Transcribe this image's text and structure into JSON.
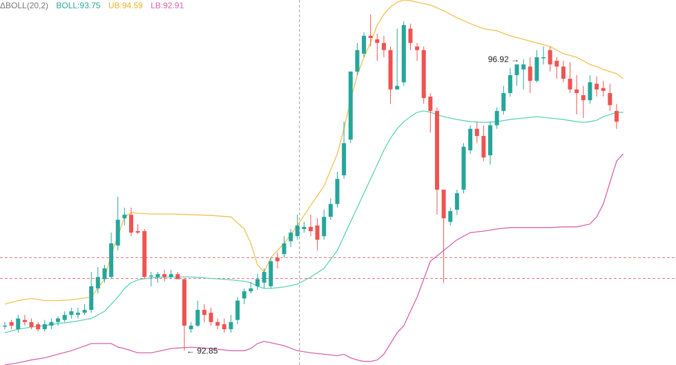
{
  "legend": {
    "indicator": "ΔBOLL(20,2)",
    "boll": "BOLL:93.75",
    "ub": "UB:94.59",
    "lb": "LB:92.91"
  },
  "colors": {
    "up": "#26a69a",
    "down": "#ef5350",
    "mid": "#5ed3b8",
    "upper": "#f2c14e",
    "lower": "#d663b0",
    "crosshair": "#9e9e9e",
    "price_line": "#e57373"
  },
  "chart_data": {
    "type": "candlestick",
    "ylim": [
      92.65,
      97.75
    ],
    "price_lines": [
      94.15,
      93.86
    ],
    "annotations": [
      {
        "text": "96.92 →",
        "bar": 78,
        "price": 96.92,
        "side": "left"
      },
      {
        "text": "← 92.85",
        "bar": 27,
        "price": 92.85,
        "side": "right"
      }
    ],
    "candles": [
      [
        93.2,
        93.2,
        93.25,
        93.15
      ],
      [
        93.25,
        93.2,
        93.28,
        93.15
      ],
      [
        93.15,
        93.3,
        93.35,
        93.1
      ],
      [
        93.28,
        93.25,
        93.35,
        93.2
      ],
      [
        93.25,
        93.18,
        93.3,
        93.15
      ],
      [
        93.22,
        93.15,
        93.25,
        93.12
      ],
      [
        93.15,
        93.22,
        93.28,
        93.12
      ],
      [
        93.2,
        93.25,
        93.3,
        93.15
      ],
      [
        93.25,
        93.3,
        93.33,
        93.2
      ],
      [
        93.28,
        93.35,
        93.4,
        93.25
      ],
      [
        93.35,
        93.4,
        93.45,
        93.3
      ],
      [
        93.35,
        93.38,
        93.45,
        93.3
      ],
      [
        93.38,
        93.42,
        93.5,
        93.35
      ],
      [
        93.42,
        93.75,
        93.95,
        93.38
      ],
      [
        93.72,
        93.88,
        94.02,
        93.65
      ],
      [
        93.85,
        94.0,
        94.05,
        93.8
      ],
      [
        93.88,
        94.35,
        94.5,
        93.85
      ],
      [
        94.32,
        94.68,
        95.0,
        94.25
      ],
      [
        94.7,
        94.75,
        94.85,
        94.6
      ],
      [
        94.75,
        94.5,
        94.85,
        94.45
      ],
      [
        94.52,
        94.5,
        94.62,
        94.48
      ],
      [
        94.52,
        93.88,
        94.55,
        93.85
      ],
      [
        93.9,
        93.9,
        93.95,
        93.75
      ],
      [
        93.88,
        93.92,
        93.95,
        93.8
      ],
      [
        93.92,
        93.88,
        93.98,
        93.82
      ],
      [
        93.88,
        93.92,
        93.98,
        93.85
      ],
      [
        93.92,
        93.85,
        93.95,
        93.85
      ],
      [
        93.85,
        93.2,
        93.85,
        92.85
      ],
      [
        93.15,
        93.2,
        93.25,
        93.1
      ],
      [
        93.2,
        93.42,
        93.55,
        93.18
      ],
      [
        93.42,
        93.35,
        93.5,
        93.25
      ],
      [
        93.38,
        93.25,
        93.45,
        93.2
      ],
      [
        93.25,
        93.2,
        93.3,
        93.15
      ],
      [
        93.22,
        93.15,
        93.3,
        93.1
      ],
      [
        93.15,
        93.25,
        93.35,
        93.1
      ],
      [
        93.28,
        93.55,
        93.6,
        93.22
      ],
      [
        93.58,
        93.68,
        93.72,
        93.5
      ],
      [
        93.68,
        93.72,
        93.8,
        93.65
      ],
      [
        93.75,
        93.85,
        93.92,
        93.7
      ],
      [
        93.8,
        93.95,
        94.0,
        93.72
      ],
      [
        93.75,
        94.1,
        94.15,
        93.72
      ],
      [
        94.15,
        94.1,
        94.22,
        94.0
      ],
      [
        94.2,
        94.35,
        94.45,
        94.15
      ],
      [
        94.38,
        94.5,
        94.55,
        94.3
      ],
      [
        94.45,
        94.6,
        94.75,
        94.4
      ],
      [
        94.55,
        94.58,
        94.65,
        94.5
      ],
      [
        94.58,
        94.52,
        94.75,
        94.45
      ],
      [
        94.6,
        94.4,
        94.7,
        94.25
      ],
      [
        94.45,
        94.72,
        94.82,
        94.4
      ],
      [
        94.72,
        94.9,
        94.98,
        94.68
      ],
      [
        94.9,
        95.25,
        95.35,
        94.85
      ],
      [
        95.3,
        95.75,
        96.05,
        95.25
      ],
      [
        95.8,
        96.75,
        96.75,
        95.75
      ],
      [
        96.75,
        97.05,
        97.15,
        96.7
      ],
      [
        97.0,
        97.25,
        97.3,
        96.95
      ],
      [
        97.25,
        97.22,
        97.55,
        97.1
      ],
      [
        97.2,
        97.15,
        97.28,
        96.9
      ],
      [
        97.15,
        97.05,
        97.25,
        96.95
      ],
      [
        97.05,
        96.5,
        97.1,
        96.3
      ],
      [
        96.5,
        96.55,
        97.35,
        96.55
      ],
      [
        96.6,
        97.4,
        97.45,
        96.55
      ],
      [
        97.35,
        97.15,
        97.42,
        97.05
      ],
      [
        97.1,
        97.05,
        97.15,
        96.9
      ],
      [
        97.05,
        96.38,
        97.1,
        96.3
      ],
      [
        96.4,
        96.2,
        96.45,
        95.9
      ],
      [
        96.2,
        95.1,
        96.25,
        94.75
      ],
      [
        95.1,
        94.7,
        95.1,
        93.8
      ],
      [
        94.65,
        94.8,
        94.85,
        94.6
      ],
      [
        94.82,
        95.05,
        95.1,
        94.75
      ],
      [
        95.1,
        95.7,
        95.75,
        95.05
      ],
      [
        95.65,
        95.95,
        96.0,
        95.6
      ],
      [
        95.95,
        95.85,
        96.05,
        95.75
      ],
      [
        95.85,
        95.55,
        96.0,
        95.5
      ],
      [
        95.58,
        96.0,
        96.05,
        95.45
      ],
      [
        96.0,
        96.2,
        96.25,
        95.95
      ],
      [
        96.2,
        96.45,
        96.55,
        96.15
      ],
      [
        96.45,
        96.7,
        96.8,
        96.4
      ],
      [
        96.7,
        96.85,
        96.85,
        96.55
      ],
      [
        96.78,
        96.85,
        96.92,
        96.5
      ],
      [
        96.82,
        96.62,
        96.95,
        96.45
      ],
      [
        96.62,
        96.95,
        97.05,
        96.6
      ],
      [
        96.95,
        96.95,
        97.1,
        96.85
      ],
      [
        97.05,
        96.85,
        97.1,
        96.75
      ],
      [
        96.9,
        96.82,
        96.95,
        96.65
      ],
      [
        96.82,
        96.65,
        96.9,
        96.6
      ],
      [
        96.65,
        96.5,
        96.88,
        96.45
      ],
      [
        96.5,
        96.45,
        96.7,
        96.15
      ],
      [
        96.42,
        96.35,
        96.55,
        96.1
      ],
      [
        96.35,
        96.6,
        96.7,
        96.3
      ],
      [
        96.58,
        96.5,
        96.68,
        96.4
      ],
      [
        96.52,
        96.48,
        96.62,
        96.4
      ],
      [
        96.45,
        96.28,
        96.58,
        96.2
      ],
      [
        96.2,
        96.05,
        96.3,
        95.95
      ]
    ],
    "bands": {
      "x": [
        0,
        2.0,
        4.0,
        6.0,
        8.0,
        10.0,
        13.0,
        15.0,
        16.0,
        17.0,
        18.0,
        19.0,
        20.0,
        22.0,
        25.0,
        28.0,
        31.0,
        34.0,
        36.0,
        37.0,
        38.0,
        39.0,
        40.0,
        42.0,
        44.0,
        46.0,
        48.0,
        50.0,
        51.0,
        52.0,
        53.0,
        54.0,
        55.0,
        56.0,
        57.0,
        58.0,
        59.0,
        60.0,
        61.0,
        62.0,
        63.0,
        64.0,
        66.0,
        68.0,
        70.0,
        72.0,
        74.0,
        76.0,
        78.0,
        80.0,
        82.0,
        84.0,
        86.0,
        87.0,
        88.0,
        89.0,
        90.0,
        91.0,
        92.0,
        93.0
      ],
      "upper": [
        93.5,
        93.55,
        93.58,
        93.55,
        93.55,
        93.56,
        93.6,
        93.85,
        94.2,
        94.45,
        94.72,
        94.78,
        94.77,
        94.76,
        94.76,
        94.75,
        94.74,
        94.72,
        94.55,
        94.35,
        94.05,
        93.95,
        94.15,
        94.35,
        94.6,
        94.88,
        95.15,
        95.6,
        95.95,
        96.35,
        96.7,
        96.95,
        97.15,
        97.4,
        97.55,
        97.65,
        97.72,
        97.75,
        97.74,
        97.72,
        97.7,
        97.68,
        97.6,
        97.5,
        97.42,
        97.35,
        97.32,
        97.25,
        97.2,
        97.15,
        97.1,
        97.0,
        96.95,
        96.9,
        96.85,
        96.82,
        96.78,
        96.75,
        96.72,
        96.65
      ],
      "mid": [
        93.1,
        93.15,
        93.18,
        93.2,
        93.23,
        93.25,
        93.3,
        93.4,
        93.5,
        93.6,
        93.72,
        93.8,
        93.84,
        93.87,
        93.88,
        93.88,
        93.86,
        93.84,
        93.82,
        93.8,
        93.75,
        93.72,
        93.72,
        93.74,
        93.78,
        93.88,
        94.0,
        94.25,
        94.45,
        94.65,
        94.85,
        95.05,
        95.25,
        95.45,
        95.65,
        95.82,
        95.95,
        96.05,
        96.12,
        96.18,
        96.2,
        96.18,
        96.12,
        96.08,
        96.05,
        96.04,
        96.05,
        96.08,
        96.1,
        96.12,
        96.1,
        96.08,
        96.05,
        96.04,
        96.05,
        96.07,
        96.12,
        96.15,
        96.18,
        96.18
      ],
      "lower": [
        92.65,
        92.68,
        92.72,
        92.75,
        92.8,
        92.85,
        92.95,
        92.95,
        92.95,
        92.9,
        92.88,
        92.85,
        92.82,
        92.82,
        92.88,
        92.9,
        92.88,
        92.85,
        92.85,
        92.88,
        92.95,
        92.98,
        92.96,
        92.92,
        92.85,
        92.82,
        92.8,
        92.78,
        92.8,
        92.75,
        92.72,
        92.7,
        92.7,
        92.72,
        92.8,
        92.95,
        93.1,
        93.2,
        93.4,
        93.6,
        93.85,
        94.1,
        94.25,
        94.4,
        94.5,
        94.52,
        94.55,
        94.57,
        94.57,
        94.57,
        94.57,
        94.58,
        94.58,
        94.6,
        94.62,
        94.72,
        94.9,
        95.2,
        95.5,
        95.6
      ]
    },
    "crosshair": {
      "bar": 44
    }
  }
}
